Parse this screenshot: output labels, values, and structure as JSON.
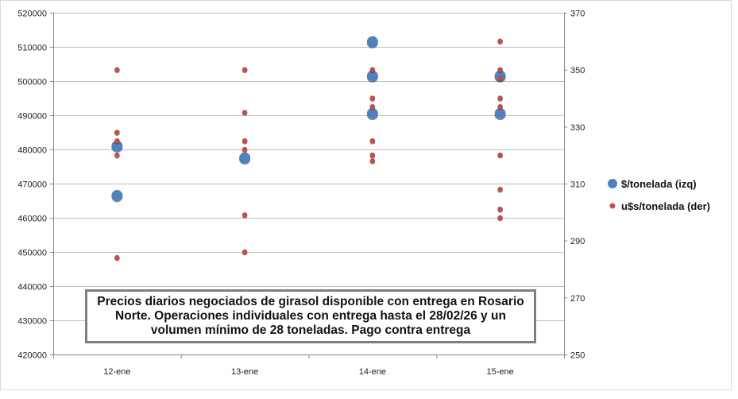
{
  "chart_data": {
    "type": "scatter",
    "categories": [
      "12-ene",
      "13-ene",
      "14-ene",
      "15-ene"
    ],
    "y_left": {
      "ylim": [
        420000,
        520000
      ],
      "ticks": [
        420000,
        430000,
        440000,
        450000,
        460000,
        470000,
        480000,
        490000,
        500000,
        510000,
        520000
      ]
    },
    "y_right": {
      "ylim": [
        250,
        370
      ],
      "ticks": [
        250,
        270,
        290,
        310,
        330,
        350,
        370
      ]
    },
    "grid": {
      "horizontal": true,
      "vertical": false
    },
    "series": [
      {
        "name": "$/tonelada (izq)",
        "axis": "left",
        "color": "#4f81bd",
        "points": [
          {
            "cat": "12-ene",
            "y": 481000
          },
          {
            "cat": "12-ene",
            "y": 466500
          },
          {
            "cat": "13-ene",
            "y": 477500
          },
          {
            "cat": "14-ene",
            "y": 511500
          },
          {
            "cat": "14-ene",
            "y": 501500
          },
          {
            "cat": "14-ene",
            "y": 490500
          },
          {
            "cat": "15-ene",
            "y": 501500
          },
          {
            "cat": "15-ene",
            "y": 490500
          }
        ]
      },
      {
        "name": "u$s/tonelada (der)",
        "axis": "right",
        "color": "#c0504d",
        "points": [
          {
            "cat": "12-ene",
            "y": 350
          },
          {
            "cat": "12-ene",
            "y": 328
          },
          {
            "cat": "12-ene",
            "y": 325
          },
          {
            "cat": "12-ene",
            "y": 320
          },
          {
            "cat": "12-ene",
            "y": 284
          },
          {
            "cat": "13-ene",
            "y": 350
          },
          {
            "cat": "13-ene",
            "y": 335
          },
          {
            "cat": "13-ene",
            "y": 325
          },
          {
            "cat": "13-ene",
            "y": 322
          },
          {
            "cat": "13-ene",
            "y": 299
          },
          {
            "cat": "13-ene",
            "y": 286
          },
          {
            "cat": "14-ene",
            "y": 350
          },
          {
            "cat": "14-ene",
            "y": 340
          },
          {
            "cat": "14-ene",
            "y": 337
          },
          {
            "cat": "14-ene",
            "y": 325
          },
          {
            "cat": "14-ene",
            "y": 320
          },
          {
            "cat": "14-ene",
            "y": 318
          },
          {
            "cat": "15-ene",
            "y": 360
          },
          {
            "cat": "15-ene",
            "y": 350
          },
          {
            "cat": "15-ene",
            "y": 347
          },
          {
            "cat": "15-ene",
            "y": 340
          },
          {
            "cat": "15-ene",
            "y": 337
          },
          {
            "cat": "15-ene",
            "y": 320
          },
          {
            "cat": "15-ene",
            "y": 308
          },
          {
            "cat": "15-ene",
            "y": 301
          },
          {
            "cat": "15-ene",
            "y": 298
          }
        ]
      }
    ],
    "legend": {
      "placement": "right"
    },
    "annotation": "Precios diarios negociados de girasol disponible con entrega en Rosario Norte. Operaciones individuales con entrega hasta el 28/02/26 y un volumen mínimo de 28 toneladas. Pago contra entrega"
  }
}
